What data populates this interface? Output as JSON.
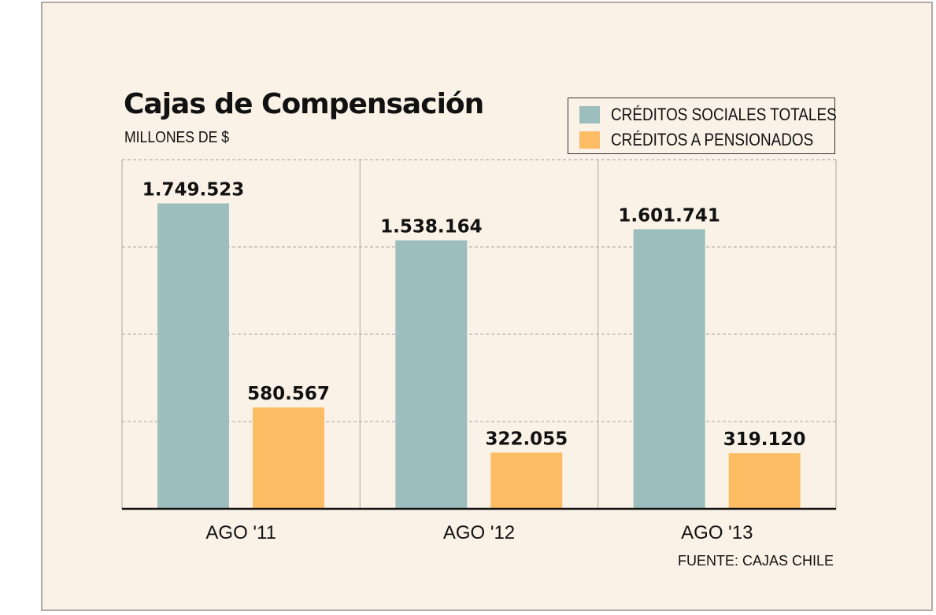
{
  "chart_data": {
    "type": "bar",
    "title": "Cajas de Compensación",
    "subtitle": "MILLONES DE $",
    "categories": [
      "AGO '11",
      "AGO '12",
      "AGO '13"
    ],
    "series": [
      {
        "name": "CRÉDITOS SOCIALES TOTALES",
        "color": "#9cbfbd",
        "values": [
          1749523,
          1538164,
          1601741
        ],
        "labels": [
          "1.749.523",
          "1.538.164",
          "1.601.741"
        ]
      },
      {
        "name": "CRÉDITOS A PENSIONADOS",
        "color": "#fdbd65",
        "values": [
          580567,
          322055,
          319120
        ],
        "labels": [
          "580.567",
          "322.055",
          "319.120"
        ]
      }
    ],
    "ylim": [
      0,
      2000000
    ],
    "grid": true,
    "legend_position": "top-right",
    "source": "FUENTE: CAJAS CHILE"
  },
  "colors": {
    "background": "#faf2e7",
    "frame_border": "#b6a9a4",
    "grid": "#b9b3ad"
  }
}
